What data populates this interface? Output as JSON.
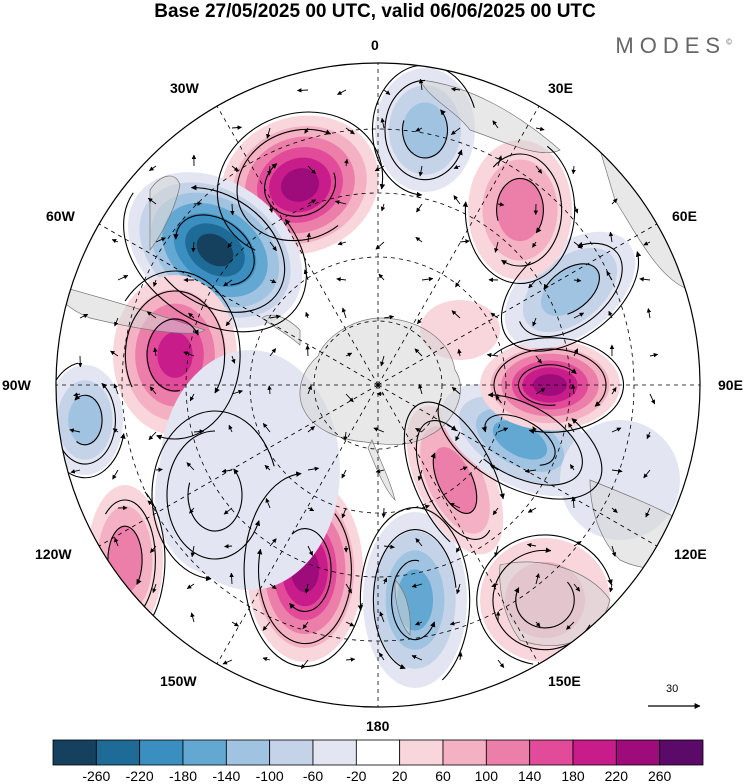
{
  "title": "Base 27/05/2025 00 UTC, valid 06/06/2025 00 UTC",
  "brand": "MODES",
  "brand_mark": "©",
  "longitude_labels": {
    "lon_0": "0",
    "lon_30e": "30E",
    "lon_60e": "60E",
    "lon_90e": "90E",
    "lon_120e": "120E",
    "lon_150e": "150E",
    "lon_180": "180",
    "lon_150w": "150W",
    "lon_120w": "120W",
    "lon_90w": "90W",
    "lon_60w": "60W",
    "lon_30w": "30W"
  },
  "vector_scale_label": "30",
  "colorbar": {
    "labels": [
      "-260",
      "-220",
      "-180",
      "-140",
      "-100",
      "-60",
      "-20",
      "20",
      "60",
      "100",
      "140",
      "180",
      "220",
      "260"
    ],
    "colors": [
      "#15415f",
      "#1d6b96",
      "#3a8ec0",
      "#63a8d2",
      "#9fc3e0",
      "#c5d3e8",
      "#e3e6f2",
      "#ffffff",
      "#f9d6db",
      "#f4b1c3",
      "#ec7fa9",
      "#e14b99",
      "#c81c8a",
      "#9e0c7c",
      "#5c0a6a"
    ]
  },
  "colors": {
    "land": "#d6d6d6",
    "positive": "#e14b99",
    "negative": "#3a8ec0"
  }
}
